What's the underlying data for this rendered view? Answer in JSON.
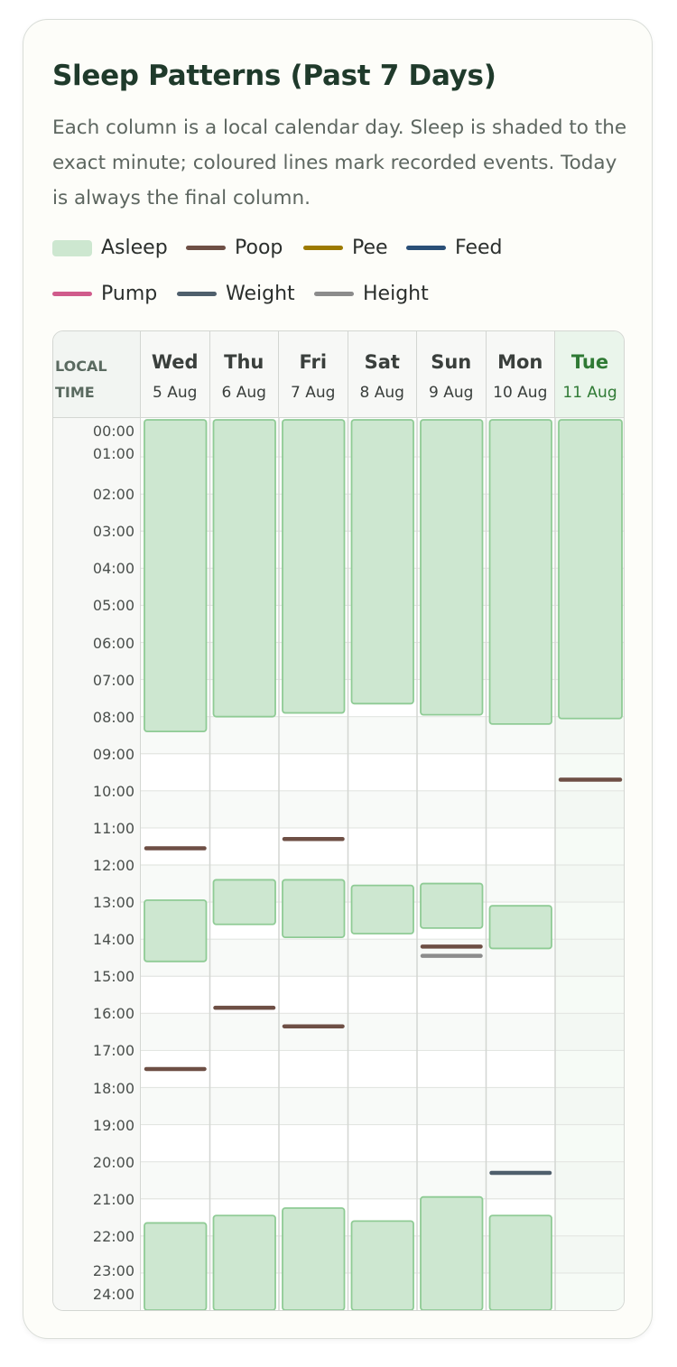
{
  "title": "Sleep Patterns (Past 7 Days)",
  "description": "Each column is a local calendar day. Sleep is shaded to the exact minute; coloured lines mark recorded events. Today is always the final column.",
  "legend": [
    {
      "label": "Asleep",
      "kind": "box",
      "color": "#cde7d0"
    },
    {
      "label": "Poop",
      "kind": "line",
      "color": "#6e4f45"
    },
    {
      "label": "Pee",
      "kind": "line",
      "color": "#9c7a00"
    },
    {
      "label": "Feed",
      "kind": "line",
      "color": "#2a4f77"
    },
    {
      "label": "Pump",
      "kind": "line",
      "color": "#d05b8c"
    },
    {
      "label": "Weight",
      "kind": "line",
      "color": "#4f5f6c"
    },
    {
      "label": "Height",
      "kind": "line",
      "color": "#8c8c8c"
    }
  ],
  "axis_header": "LOCAL TIME",
  "chart_data": {
    "type": "timeline",
    "time_labels": [
      "00:00",
      "01:00",
      "02:00",
      "03:00",
      "04:00",
      "05:00",
      "06:00",
      "07:00",
      "08:00",
      "09:00",
      "10:00",
      "11:00",
      "12:00",
      "13:00",
      "14:00",
      "15:00",
      "16:00",
      "17:00",
      "18:00",
      "19:00",
      "20:00",
      "21:00",
      "22:00",
      "23:00",
      "24:00"
    ],
    "y_range": [
      0,
      24
    ],
    "days": [
      {
        "day": "Wed",
        "date": "5 Aug",
        "today": false,
        "sleep": [
          [
            0,
            8.4
          ],
          [
            12.95,
            14.6
          ],
          [
            21.65,
            24
          ]
        ],
        "events": [
          {
            "type": "Poop",
            "time": 11.55
          },
          {
            "type": "Poop",
            "time": 17.5
          }
        ]
      },
      {
        "day": "Thu",
        "date": "6 Aug",
        "today": false,
        "sleep": [
          [
            0,
            8.0
          ],
          [
            12.4,
            13.6
          ],
          [
            21.45,
            24
          ]
        ],
        "events": [
          {
            "type": "Poop",
            "time": 15.85
          }
        ]
      },
      {
        "day": "Fri",
        "date": "7 Aug",
        "today": false,
        "sleep": [
          [
            0,
            7.9
          ],
          [
            12.4,
            13.95
          ],
          [
            21.25,
            24
          ]
        ],
        "events": [
          {
            "type": "Poop",
            "time": 11.3
          },
          {
            "type": "Poop",
            "time": 16.35
          }
        ]
      },
      {
        "day": "Sat",
        "date": "8 Aug",
        "today": false,
        "sleep": [
          [
            0,
            7.65
          ],
          [
            12.55,
            13.85
          ],
          [
            21.6,
            24
          ]
        ],
        "events": []
      },
      {
        "day": "Sun",
        "date": "9 Aug",
        "today": false,
        "sleep": [
          [
            0,
            7.95
          ],
          [
            12.5,
            13.7
          ],
          [
            20.95,
            24
          ]
        ],
        "events": [
          {
            "type": "Poop",
            "time": 14.2
          },
          {
            "type": "Height",
            "time": 14.45
          }
        ]
      },
      {
        "day": "Mon",
        "date": "10 Aug",
        "today": false,
        "sleep": [
          [
            0,
            8.2
          ],
          [
            13.1,
            14.25
          ],
          [
            21.45,
            24
          ]
        ],
        "events": [
          {
            "type": "Weight",
            "time": 20.3
          }
        ]
      },
      {
        "day": "Tue",
        "date": "11 Aug",
        "today": true,
        "sleep": [
          [
            0,
            8.05
          ]
        ],
        "events": [
          {
            "type": "Poop",
            "time": 9.7
          }
        ]
      }
    ]
  }
}
